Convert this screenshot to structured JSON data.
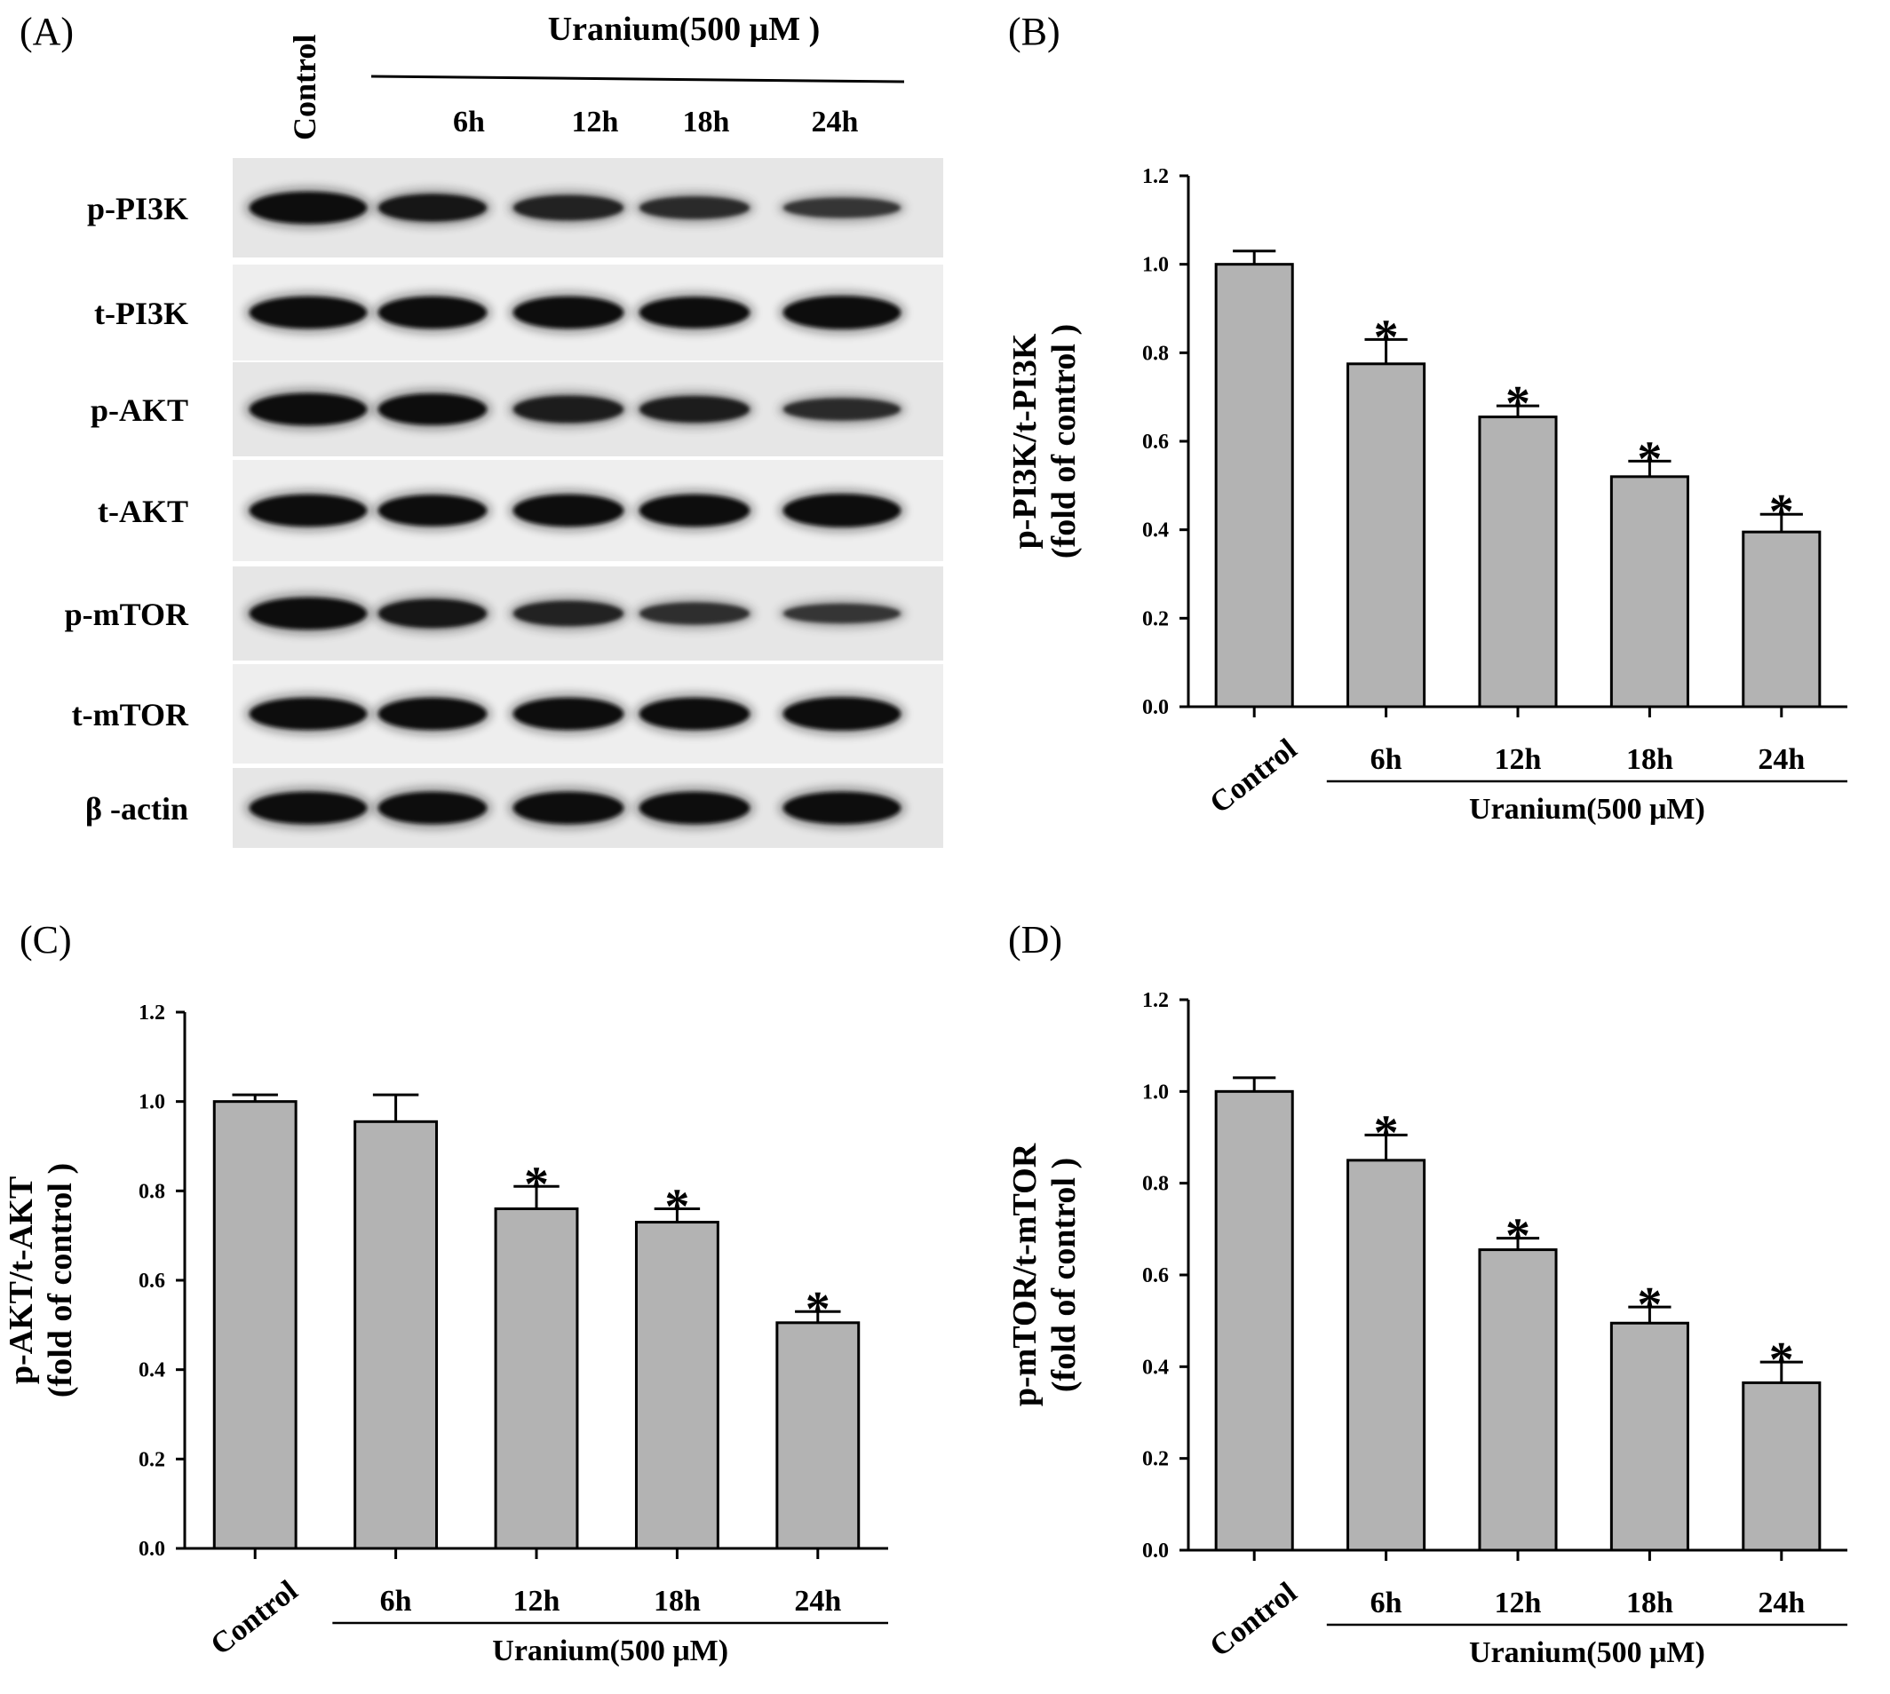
{
  "panels": {
    "A": "(A)",
    "B": "(B)",
    "C": "(C)",
    "D": "(D)"
  },
  "blot": {
    "control_label": "Control",
    "treatment_label": "Uranium(500 μM )",
    "lanes": [
      "6h",
      "12h",
      "18h",
      "24h"
    ],
    "rows": [
      {
        "label": "p-PI3K",
        "intensity": [
          1.0,
          0.78,
          0.66,
          0.52,
          0.4
        ]
      },
      {
        "label": "t-PI3K",
        "intensity": [
          1.0,
          1.0,
          1.0,
          0.95,
          1.05
        ]
      },
      {
        "label": "p-AKT",
        "intensity": [
          1.0,
          0.96,
          0.76,
          0.73,
          0.51
        ]
      },
      {
        "label": "t-AKT",
        "intensity": [
          1.0,
          0.95,
          1.0,
          1.0,
          1.05
        ]
      },
      {
        "label": "p-mTOR",
        "intensity": [
          1.0,
          0.85,
          0.66,
          0.5,
          0.37
        ]
      },
      {
        "label": "t-mTOR",
        "intensity": [
          1.0,
          1.0,
          1.0,
          1.0,
          1.05
        ]
      },
      {
        "label": "β -actin",
        "intensity": [
          1.0,
          1.0,
          1.0,
          1.0,
          1.0
        ]
      }
    ]
  },
  "chart_data": [
    {
      "type": "bar",
      "panel": "B",
      "categories": [
        "Control",
        "6h",
        "12h",
        "18h",
        "24h"
      ],
      "values": [
        1.0,
        0.775,
        0.655,
        0.52,
        0.395
      ],
      "errors": [
        0.03,
        0.055,
        0.025,
        0.035,
        0.04
      ],
      "significant": [
        false,
        true,
        true,
        true,
        true
      ],
      "ylabel_line1": "p-PI3K/t-PI3K",
      "ylabel_line2": "(fold of control )",
      "group_label": "Uranium(500 μM)",
      "yticks": [
        "0.0",
        "0.2",
        "0.4",
        "0.6",
        "0.8",
        "1.0",
        "1.2"
      ],
      "ylim": [
        0,
        1.2
      ],
      "bar_color": "#b3b3b3"
    },
    {
      "type": "bar",
      "panel": "C",
      "categories": [
        "Control",
        "6h",
        "12h",
        "18h",
        "24h"
      ],
      "values": [
        1.0,
        0.955,
        0.76,
        0.73,
        0.505
      ],
      "errors": [
        0.015,
        0.06,
        0.05,
        0.03,
        0.025
      ],
      "significant": [
        false,
        false,
        true,
        true,
        true
      ],
      "ylabel_line1": "p-AKT/t-AKT",
      "ylabel_line2": "(fold of control )",
      "group_label": "Uranium(500 μM)",
      "yticks": [
        "0.0",
        "0.2",
        "0.4",
        "0.6",
        "0.8",
        "1.0",
        "1.2"
      ],
      "ylim": [
        0,
        1.2
      ],
      "bar_color": "#b3b3b3"
    },
    {
      "type": "bar",
      "panel": "D",
      "categories": [
        "Control",
        "6h",
        "12h",
        "18h",
        "24h"
      ],
      "values": [
        1.0,
        0.85,
        0.655,
        0.495,
        0.365
      ],
      "errors": [
        0.03,
        0.055,
        0.025,
        0.035,
        0.045
      ],
      "significant": [
        false,
        true,
        true,
        true,
        true
      ],
      "ylabel_line1": "p-mTOR/t-mTOR",
      "ylabel_line2": "(fold of control )",
      "group_label": "Uranium(500 μM)",
      "yticks": [
        "0.0",
        "0.2",
        "0.4",
        "0.6",
        "0.8",
        "1.0",
        "1.2"
      ],
      "ylim": [
        0,
        1.2
      ],
      "bar_color": "#b3b3b3"
    }
  ]
}
